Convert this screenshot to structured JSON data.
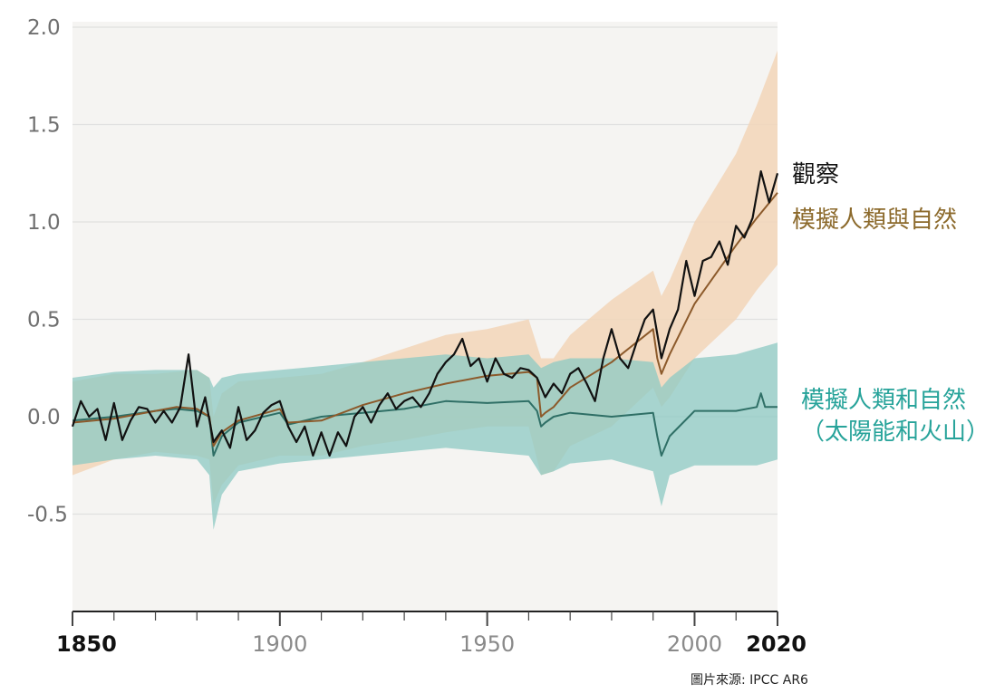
{
  "chart_data": {
    "type": "line",
    "xlim": [
      1850,
      2020
    ],
    "ylim": [
      -1.0,
      2.0
    ],
    "yticks": [
      "2.0",
      "1.5",
      "1.0",
      "0.5",
      "0.0",
      "-0.5"
    ],
    "ytick_values": [
      2.0,
      1.5,
      1.0,
      0.5,
      0.0,
      -0.5
    ],
    "xticks": [
      "1850",
      "1900",
      "1950",
      "2000",
      "2020"
    ],
    "xtick_values": [
      1850,
      1900,
      1950,
      2000,
      2020
    ],
    "xtick_bold": [
      "1850",
      "2020"
    ],
    "grid": true,
    "colors": {
      "observed": "#111111",
      "human_natural_line": "#8c5a2b",
      "human_natural_band": "#f2d5b8",
      "natural_line": "#2f6f66",
      "natural_band": "#8ccac3",
      "label_human_natural": "#8c6a2c",
      "label_natural": "#27a39a",
      "plot_bg": "#f5f4f2",
      "grid": "#e0e0e0"
    },
    "series": [
      {
        "name": "觀察",
        "x": [
          1850,
          1852,
          1854,
          1856,
          1858,
          1860,
          1862,
          1864,
          1866,
          1868,
          1870,
          1872,
          1874,
          1876,
          1878,
          1880,
          1882,
          1884,
          1886,
          1888,
          1890,
          1892,
          1894,
          1896,
          1898,
          1900,
          1902,
          1904,
          1906,
          1908,
          1910,
          1912,
          1914,
          1916,
          1918,
          1920,
          1922,
          1924,
          1926,
          1928,
          1930,
          1932,
          1934,
          1936,
          1938,
          1940,
          1942,
          1944,
          1946,
          1948,
          1950,
          1952,
          1954,
          1956,
          1958,
          1960,
          1962,
          1964,
          1966,
          1968,
          1970,
          1972,
          1974,
          1976,
          1978,
          1980,
          1982,
          1984,
          1986,
          1988,
          1990,
          1992,
          1994,
          1996,
          1998,
          2000,
          2002,
          2004,
          2006,
          2008,
          2010,
          2012,
          2014,
          2016,
          2018,
          2020
        ],
        "values": [
          -0.05,
          0.08,
          0.0,
          0.04,
          -0.12,
          0.07,
          -0.12,
          -0.02,
          0.05,
          0.04,
          -0.03,
          0.03,
          -0.03,
          0.05,
          0.32,
          -0.05,
          0.1,
          -0.13,
          -0.07,
          -0.16,
          0.05,
          -0.12,
          -0.07,
          0.02,
          0.06,
          0.08,
          -0.05,
          -0.13,
          -0.05,
          -0.2,
          -0.08,
          -0.2,
          -0.08,
          -0.15,
          0.0,
          0.05,
          -0.03,
          0.06,
          0.12,
          0.04,
          0.08,
          0.1,
          0.05,
          0.12,
          0.22,
          0.28,
          0.32,
          0.4,
          0.26,
          0.3,
          0.18,
          0.3,
          0.22,
          0.2,
          0.25,
          0.24,
          0.2,
          0.1,
          0.17,
          0.12,
          0.22,
          0.25,
          0.17,
          0.08,
          0.3,
          0.45,
          0.3,
          0.25,
          0.38,
          0.5,
          0.55,
          0.3,
          0.45,
          0.55,
          0.8,
          0.62,
          0.8,
          0.82,
          0.9,
          0.78,
          0.98,
          0.92,
          1.02,
          1.26,
          1.1,
          1.25
        ]
      },
      {
        "name": "模擬人類與自然",
        "x": [
          1850,
          1860,
          1870,
          1875,
          1880,
          1883,
          1884,
          1886,
          1890,
          1900,
          1902,
          1910,
          1920,
          1930,
          1940,
          1950,
          1960,
          1962,
          1963,
          1964,
          1966,
          1970,
          1980,
          1990,
          1991,
          1992,
          1994,
          2000,
          2010,
          2015,
          2020
        ],
        "values": [
          -0.03,
          -0.01,
          0.03,
          0.05,
          0.04,
          0.0,
          -0.15,
          -0.08,
          -0.02,
          0.04,
          -0.03,
          -0.02,
          0.06,
          0.12,
          0.17,
          0.21,
          0.23,
          0.2,
          0.0,
          0.02,
          0.05,
          0.15,
          0.28,
          0.45,
          0.3,
          0.22,
          0.32,
          0.58,
          0.88,
          1.02,
          1.15
        ]
      },
      {
        "name": "模擬人類和自然（太陽能和火山）",
        "x": [
          1850,
          1860,
          1870,
          1875,
          1880,
          1883,
          1884,
          1886,
          1890,
          1900,
          1902,
          1910,
          1920,
          1930,
          1940,
          1950,
          1960,
          1962,
          1963,
          1964,
          1966,
          1970,
          1980,
          1990,
          1991,
          1992,
          1994,
          2000,
          2010,
          2015,
          2016,
          2017,
          2020
        ],
        "values": [
          -0.02,
          0.0,
          0.03,
          0.04,
          0.03,
          0.0,
          -0.2,
          -0.1,
          -0.03,
          0.02,
          -0.04,
          0.0,
          0.02,
          0.04,
          0.08,
          0.07,
          0.08,
          0.03,
          -0.05,
          -0.03,
          0.0,
          0.02,
          0.0,
          0.02,
          -0.1,
          -0.2,
          -0.1,
          0.03,
          0.03,
          0.05,
          0.12,
          0.05,
          0.05
        ]
      }
    ],
    "bands": [
      {
        "name": "模擬人類與自然",
        "x": [
          1850,
          1860,
          1870,
          1880,
          1883,
          1884,
          1886,
          1890,
          1900,
          1910,
          1920,
          1930,
          1940,
          1950,
          1960,
          1963,
          1966,
          1970,
          1980,
          1990,
          1992,
          1994,
          2000,
          2010,
          2015,
          2020
        ],
        "upper": [
          0.18,
          0.22,
          0.22,
          0.24,
          0.2,
          0.0,
          0.12,
          0.18,
          0.2,
          0.22,
          0.28,
          0.35,
          0.42,
          0.45,
          0.5,
          0.3,
          0.3,
          0.42,
          0.6,
          0.75,
          0.62,
          0.7,
          1.0,
          1.35,
          1.6,
          1.88
        ],
        "lower": [
          -0.3,
          -0.22,
          -0.18,
          -0.2,
          -0.22,
          -0.45,
          -0.35,
          -0.25,
          -0.2,
          -0.2,
          -0.15,
          -0.12,
          -0.08,
          -0.05,
          -0.05,
          -0.3,
          -0.28,
          -0.15,
          -0.05,
          0.15,
          0.05,
          0.1,
          0.3,
          0.5,
          0.65,
          0.78
        ]
      },
      {
        "name": "模擬人類和自然（太陽能和火山）",
        "x": [
          1850,
          1860,
          1870,
          1880,
          1883,
          1884,
          1886,
          1890,
          1900,
          1910,
          1920,
          1930,
          1940,
          1950,
          1960,
          1963,
          1966,
          1970,
          1980,
          1990,
          1992,
          1994,
          2000,
          2010,
          2015,
          2020
        ],
        "upper": [
          0.2,
          0.23,
          0.24,
          0.24,
          0.2,
          0.15,
          0.2,
          0.22,
          0.24,
          0.26,
          0.28,
          0.3,
          0.32,
          0.3,
          0.32,
          0.25,
          0.28,
          0.3,
          0.3,
          0.28,
          0.15,
          0.2,
          0.3,
          0.32,
          0.35,
          0.38
        ],
        "lower": [
          -0.25,
          -0.22,
          -0.2,
          -0.22,
          -0.3,
          -0.58,
          -0.4,
          -0.28,
          -0.24,
          -0.22,
          -0.2,
          -0.18,
          -0.16,
          -0.18,
          -0.2,
          -0.3,
          -0.28,
          -0.24,
          -0.22,
          -0.28,
          -0.46,
          -0.3,
          -0.25,
          -0.25,
          -0.25,
          -0.22
        ]
      }
    ]
  },
  "labels": {
    "observed": "觀察",
    "human_natural": "模擬人類與自然",
    "natural_line1": "模擬人類和自然",
    "natural_line2": "（太陽能和火山）"
  },
  "source_note": "圖片來源: IPCC AR6"
}
